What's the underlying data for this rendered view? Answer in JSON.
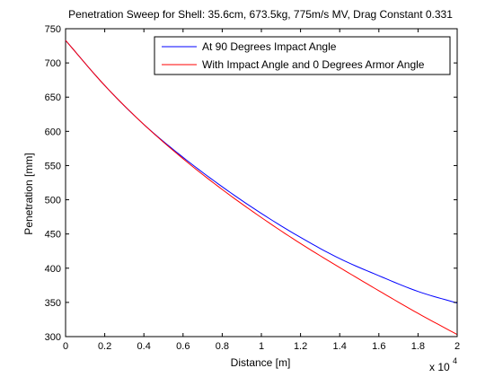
{
  "chart_data": {
    "type": "line",
    "title": "Penetration Sweep for Shell: 35.6cm, 673.5kg, 775m/s MV, Drag Constant 0.331",
    "xlabel": "Distance [m]",
    "ylabel": "Penetration [mm]",
    "x_exponent_label": "x 10",
    "x_exponent_power": "4",
    "xlim": [
      0,
      20000
    ],
    "ylim": [
      300,
      750
    ],
    "x_ticks": [
      0,
      2000,
      4000,
      6000,
      8000,
      10000,
      12000,
      14000,
      16000,
      18000,
      20000
    ],
    "x_tick_labels": [
      "0",
      "0.2",
      "0.4",
      "0.6",
      "0.8",
      "1",
      "1.2",
      "1.4",
      "1.6",
      "1.8",
      "2"
    ],
    "y_ticks": [
      300,
      350,
      400,
      450,
      500,
      550,
      600,
      650,
      700,
      750
    ],
    "y_tick_labels": [
      "300",
      "350",
      "400",
      "450",
      "500",
      "550",
      "600",
      "650",
      "700",
      "750"
    ],
    "grid": false,
    "legend_position": "top-right",
    "x": [
      0,
      2000,
      4000,
      6000,
      8000,
      10000,
      12000,
      14000,
      16000,
      18000,
      20000
    ],
    "series": [
      {
        "name": "At 90 Degrees Impact Angle",
        "color": "#0000ff",
        "values": [
          733,
          667,
          610,
          562,
          519,
          480,
          445,
          414,
          389,
          366,
          349
        ]
      },
      {
        "name": "With Impact Angle and 0 Degrees Armor Angle",
        "color": "#ff0000",
        "values": [
          733,
          667,
          610,
          560,
          515,
          474,
          436,
          401,
          367,
          334,
          303
        ]
      }
    ]
  }
}
